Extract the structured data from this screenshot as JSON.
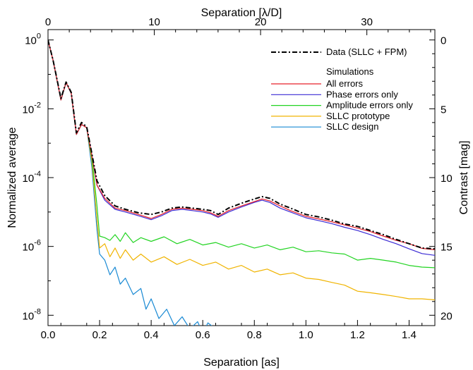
{
  "chart_data": {
    "type": "line",
    "title": "",
    "xlabel": "Separation [as]",
    "ylabel": "Normalized average",
    "x2label": "Separation [λ/D]",
    "y2label": "Contrast [mag]",
    "xlim": [
      0,
      1.5
    ],
    "ylim": [
      5e-09,
      2.0
    ],
    "yscale": "log",
    "x2lim": [
      0,
      36.4
    ],
    "grid": false,
    "legend_position": "top-right",
    "xticks": [
      {
        "v": 0.0,
        "label": "0.0"
      },
      {
        "v": 0.2,
        "label": "0.2"
      },
      {
        "v": 0.4,
        "label": "0.4"
      },
      {
        "v": 0.6,
        "label": "0.6"
      },
      {
        "v": 0.8,
        "label": "0.8"
      },
      {
        "v": 1.0,
        "label": "1.0"
      },
      {
        "v": 1.2,
        "label": "1.2"
      },
      {
        "v": 1.4,
        "label": "1.4"
      }
    ],
    "x2ticks": [
      {
        "v": 0,
        "label": "0"
      },
      {
        "v": 10,
        "label": "10"
      },
      {
        "v": 20,
        "label": "20"
      },
      {
        "v": 30,
        "label": "30"
      }
    ],
    "yticks": [
      {
        "v": 1,
        "base": "10",
        "exp": "0"
      },
      {
        "v": 0.01,
        "base": "10",
        "exp": "-2"
      },
      {
        "v": 0.0001,
        "base": "10",
        "exp": "-4"
      },
      {
        "v": 1e-06,
        "base": "10",
        "exp": "-6"
      },
      {
        "v": 1e-08,
        "base": "10",
        "exp": "-8"
      }
    ],
    "y2ticks": [
      {
        "v": 0,
        "label": "0"
      },
      {
        "v": 5,
        "label": "5"
      },
      {
        "v": 10,
        "label": "10"
      },
      {
        "v": 15,
        "label": "15"
      },
      {
        "v": 20,
        "label": "20"
      }
    ],
    "legend": {
      "data_label": "Data (SLLC + FPM)",
      "sim_header": "Simulations"
    },
    "series": [
      {
        "name": "Data (SLLC + FPM)",
        "color": "#000000",
        "dash": "dashdot",
        "x": [
          0.0,
          0.02,
          0.05,
          0.07,
          0.09,
          0.11,
          0.13,
          0.15,
          0.17,
          0.19,
          0.22,
          0.26,
          0.3,
          0.35,
          0.4,
          0.44,
          0.48,
          0.52,
          0.56,
          0.6,
          0.63,
          0.66,
          0.7,
          0.75,
          0.8,
          0.83,
          0.86,
          0.9,
          0.94,
          1.0,
          1.05,
          1.1,
          1.15,
          1.2,
          1.25,
          1.3,
          1.35,
          1.4,
          1.45,
          1.5
        ],
        "y": [
          1.0,
          0.25,
          0.02,
          0.06,
          0.03,
          0.002,
          0.004,
          0.003,
          0.0005,
          8e-05,
          3e-05,
          1.5e-05,
          1.2e-05,
          9.5e-06,
          8.5e-06,
          1e-05,
          1.3e-05,
          1.4e-05,
          1.3e-05,
          1.2e-05,
          1.1e-05,
          8.5e-06,
          1.3e-05,
          1.8e-05,
          2.4e-05,
          2.8e-05,
          2.5e-05,
          1.7e-05,
          1.3e-05,
          8.5e-06,
          7.2e-06,
          5.8e-06,
          4.5e-06,
          3.8e-06,
          2.9e-06,
          2.2e-06,
          1.6e-06,
          1.2e-06,
          9e-07,
          8.5e-07
        ]
      },
      {
        "name": "All errors",
        "color": "#e8202a",
        "x": [
          0.0,
          0.02,
          0.05,
          0.07,
          0.09,
          0.11,
          0.13,
          0.15,
          0.17,
          0.19,
          0.22,
          0.26,
          0.3,
          0.35,
          0.4,
          0.44,
          0.48,
          0.52,
          0.56,
          0.6,
          0.63,
          0.66,
          0.7,
          0.75,
          0.8,
          0.83,
          0.86,
          0.9,
          0.94,
          1.0,
          1.05,
          1.1,
          1.15,
          1.2,
          1.25,
          1.3,
          1.35,
          1.4,
          1.45,
          1.5
        ],
        "y": [
          1.0,
          0.25,
          0.018,
          0.058,
          0.028,
          0.0018,
          0.0035,
          0.0028,
          0.00045,
          6e-05,
          2.5e-05,
          1.3e-05,
          1.1e-05,
          8.5e-06,
          6.5e-06,
          8.5e-06,
          1.2e-05,
          1.3e-05,
          1.2e-05,
          1.1e-05,
          9.5e-06,
          7.5e-06,
          1.1e-05,
          1.5e-05,
          2e-05,
          2.4e-05,
          2.1e-05,
          1.5e-05,
          1.1e-05,
          7.5e-06,
          6.3e-06,
          5.2e-06,
          4.2e-06,
          3.4e-06,
          2.7e-06,
          2e-06,
          1.5e-06,
          1.2e-06,
          8.8e-07,
          8e-07
        ]
      },
      {
        "name": "Phase errors only",
        "color": "#3a2ad4",
        "x": [
          0.0,
          0.02,
          0.05,
          0.07,
          0.09,
          0.11,
          0.13,
          0.15,
          0.17,
          0.19,
          0.22,
          0.26,
          0.3,
          0.35,
          0.4,
          0.44,
          0.48,
          0.52,
          0.56,
          0.6,
          0.63,
          0.66,
          0.7,
          0.75,
          0.8,
          0.83,
          0.86,
          0.9,
          0.94,
          1.0,
          1.05,
          1.1,
          1.15,
          1.2,
          1.25,
          1.3,
          1.35,
          1.4,
          1.45,
          1.5
        ],
        "y": [
          1.0,
          0.25,
          0.018,
          0.058,
          0.028,
          0.0018,
          0.0035,
          0.0028,
          0.00045,
          6e-05,
          2.2e-05,
          1.2e-05,
          1e-05,
          7.8e-06,
          6e-06,
          7.8e-06,
          1.1e-05,
          1.2e-05,
          1.1e-05,
          1e-05,
          8.8e-06,
          7e-06,
          1e-05,
          1.4e-05,
          1.9e-05,
          2.2e-05,
          1.9e-05,
          1.3e-05,
          1e-05,
          6.8e-06,
          5.6e-06,
          4.6e-06,
          3.6e-06,
          2.9e-06,
          2.2e-06,
          1.6e-06,
          1.2e-06,
          8.5e-07,
          6.2e-07,
          5.5e-07
        ]
      },
      {
        "name": "Amplitude errors only",
        "color": "#22d422",
        "x": [
          0.0,
          0.02,
          0.05,
          0.07,
          0.09,
          0.11,
          0.13,
          0.15,
          0.17,
          0.19,
          0.2,
          0.22,
          0.24,
          0.26,
          0.28,
          0.3,
          0.33,
          0.36,
          0.4,
          0.45,
          0.5,
          0.55,
          0.6,
          0.65,
          0.7,
          0.75,
          0.8,
          0.85,
          0.9,
          0.95,
          1.0,
          1.05,
          1.1,
          1.15,
          1.2,
          1.25,
          1.3,
          1.35,
          1.4,
          1.45,
          1.5
        ],
        "y": [
          1.0,
          0.25,
          0.018,
          0.058,
          0.028,
          0.0018,
          0.0035,
          0.0028,
          0.0004,
          1.5e-05,
          2e-06,
          1.8e-06,
          1.5e-06,
          2.2e-06,
          1.4e-06,
          2.5e-06,
          1.3e-06,
          1.8e-06,
          1.4e-06,
          1.9e-06,
          1.2e-06,
          1.6e-06,
          1.1e-06,
          1.3e-06,
          9.5e-07,
          1.2e-06,
          9e-07,
          1.1e-06,
          8e-07,
          9.5e-07,
          7e-07,
          7.5e-07,
          6.5e-07,
          6e-07,
          4e-07,
          4.5e-07,
          4e-07,
          3.5e-07,
          2.8e-07,
          2.5e-07,
          2.4e-07
        ]
      },
      {
        "name": "SLLC prototype",
        "color": "#f0b400",
        "x": [
          0.0,
          0.02,
          0.05,
          0.07,
          0.09,
          0.11,
          0.13,
          0.15,
          0.17,
          0.19,
          0.2,
          0.22,
          0.24,
          0.26,
          0.28,
          0.3,
          0.33,
          0.36,
          0.4,
          0.45,
          0.5,
          0.55,
          0.6,
          0.65,
          0.7,
          0.75,
          0.8,
          0.85,
          0.9,
          0.95,
          1.0,
          1.05,
          1.1,
          1.15,
          1.2,
          1.25,
          1.3,
          1.35,
          1.4,
          1.45,
          1.5
        ],
        "y": [
          1.0,
          0.25,
          0.018,
          0.058,
          0.028,
          0.0018,
          0.0035,
          0.0028,
          0.0003,
          6e-06,
          9e-07,
          1.2e-06,
          5e-07,
          9e-07,
          4.5e-07,
          8e-07,
          4e-07,
          6e-07,
          3.5e-07,
          5e-07,
          3e-07,
          4.2e-07,
          2.8e-07,
          3.5e-07,
          2.2e-07,
          2.8e-07,
          1.8e-07,
          2.2e-07,
          1.5e-07,
          1.7e-07,
          1.2e-07,
          1.1e-07,
          9e-08,
          7.5e-08,
          5e-08,
          4.5e-08,
          4e-08,
          3.5e-08,
          3e-08,
          3e-08,
          2.8e-08
        ]
      },
      {
        "name": "SLLC design",
        "color": "#1a8ad4",
        "x": [
          0.0,
          0.02,
          0.05,
          0.07,
          0.09,
          0.11,
          0.13,
          0.15,
          0.17,
          0.19,
          0.2,
          0.22,
          0.24,
          0.26,
          0.28,
          0.3,
          0.33,
          0.36,
          0.38,
          0.4,
          0.43,
          0.46,
          0.49,
          0.52,
          0.55,
          0.58,
          0.6,
          0.62,
          0.65,
          0.67
        ],
        "y": [
          1.0,
          0.25,
          0.018,
          0.058,
          0.028,
          0.0018,
          0.0035,
          0.0028,
          0.0002,
          3e-06,
          6e-07,
          4e-07,
          1.5e-07,
          2.5e-07,
          8e-08,
          1.2e-07,
          4e-08,
          6e-08,
          1.5e-08,
          3e-08,
          8e-09,
          1.5e-08,
          5e-09,
          9e-09,
          4e-09,
          6.5e-09,
          3e-09,
          6e-09,
          4e-09,
          3e-09
        ]
      }
    ]
  }
}
